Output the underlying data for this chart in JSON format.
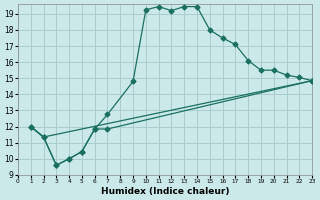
{
  "xlabel": "Humidex (Indice chaleur)",
  "background_color": "#cce9e9",
  "grid_color": "#aacccc",
  "line_color": "#1a7060",
  "xlim": [
    0,
    23
  ],
  "ylim": [
    9,
    19.6
  ],
  "yticks": [
    9,
    10,
    11,
    12,
    13,
    14,
    15,
    16,
    17,
    18,
    19
  ],
  "xticks": [
    0,
    1,
    2,
    3,
    4,
    5,
    6,
    7,
    8,
    9,
    10,
    11,
    12,
    13,
    14,
    15,
    16,
    17,
    18,
    19,
    20,
    21,
    22,
    23
  ],
  "curve1_x": [
    1,
    2,
    3,
    4,
    5,
    6,
    7,
    9,
    10,
    11,
    12,
    13,
    14,
    15,
    16,
    17,
    18,
    19,
    20,
    21,
    22,
    23
  ],
  "curve1_y": [
    12.0,
    11.35,
    9.6,
    10.0,
    10.45,
    11.85,
    12.75,
    14.8,
    19.25,
    19.45,
    19.2,
    19.45,
    19.45,
    18.0,
    17.5,
    17.1,
    16.1,
    15.5,
    15.5,
    15.2,
    15.05,
    14.85
  ],
  "curve2_x": [
    1,
    2,
    3,
    4,
    5,
    6,
    7,
    23
  ],
  "curve2_y": [
    12.0,
    11.35,
    9.6,
    10.0,
    10.45,
    11.85,
    11.85,
    14.85
  ],
  "curve3_x": [
    1,
    2,
    23
  ],
  "curve3_y": [
    12.0,
    11.35,
    14.85
  ]
}
